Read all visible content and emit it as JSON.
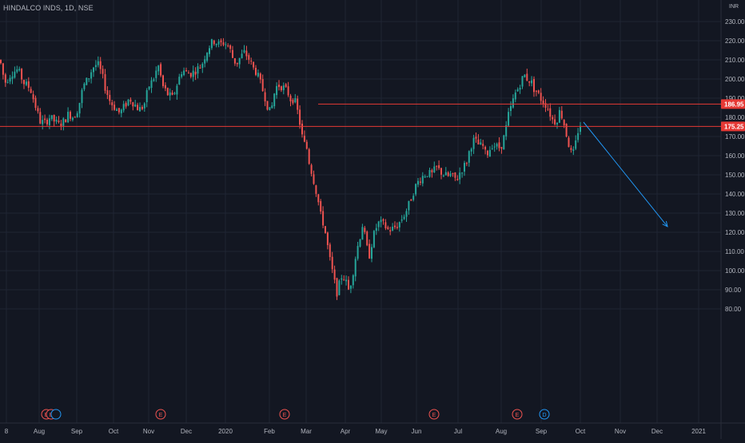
{
  "header": {
    "title": "HINDALCO INDS, 1D, NSE"
  },
  "price_scale": {
    "currency": "INR"
  },
  "colors": {
    "background": "#131722",
    "grid": "#1f2433",
    "up": "#26a69a",
    "down": "#ef5350",
    "text": "#b2b5be",
    "horizontal_line": "#e53935",
    "trend_arrow": "#2196f3",
    "event_earnings": "#ef5350",
    "event_dividend": "#2196f3"
  },
  "chart_data": {
    "type": "candlestick",
    "title": "HINDALCO INDS, 1D, NSE",
    "ylim": [
      75,
      235
    ],
    "y_ticks": [
      80,
      90,
      100,
      110,
      120,
      130,
      140,
      150,
      160,
      170,
      180,
      190,
      200,
      210,
      220,
      230
    ],
    "y_tick_labels": [
      "80.00",
      "90.00",
      "100.00",
      "110.00",
      "120.00",
      "130.00",
      "140.00",
      "150.00",
      "160.00",
      "170.00",
      "180.00",
      "190.00",
      "200.00",
      "210.00",
      "220.00",
      "230.00"
    ],
    "x_tick_labels": [
      "8",
      "Aug",
      "Sep",
      "Oct",
      "Nov",
      "Dec",
      "2020",
      "Feb",
      "Mar",
      "Apr",
      "May",
      "Jun",
      "Jul",
      "Aug",
      "Sep",
      "Oct",
      "Nov",
      "Dec",
      "2021"
    ],
    "price_trajectory": [
      [
        0,
        210
      ],
      [
        6,
        198
      ],
      [
        14,
        203
      ],
      [
        22,
        205
      ],
      [
        30,
        198
      ],
      [
        38,
        195
      ],
      [
        45,
        185
      ],
      [
        50,
        178
      ],
      [
        56,
        177
      ],
      [
        62,
        180
      ],
      [
        68,
        178
      ],
      [
        74,
        176
      ],
      [
        80,
        178
      ],
      [
        86,
        182
      ],
      [
        92,
        180
      ],
      [
        98,
        185
      ],
      [
        104,
        196
      ],
      [
        110,
        200
      ],
      [
        116,
        206
      ],
      [
        122,
        208
      ],
      [
        127,
        203
      ],
      [
        132,
        195
      ],
      [
        138,
        188
      ],
      [
        144,
        185
      ],
      [
        150,
        182
      ],
      [
        156,
        186
      ],
      [
        162,
        190
      ],
      [
        168,
        187
      ],
      [
        174,
        184
      ],
      [
        180,
        186
      ],
      [
        186,
        196
      ],
      [
        192,
        200
      ],
      [
        198,
        207
      ],
      [
        204,
        196
      ],
      [
        210,
        192
      ],
      [
        216,
        190
      ],
      [
        222,
        198
      ],
      [
        228,
        205
      ],
      [
        234,
        203
      ],
      [
        240,
        203
      ],
      [
        246,
        205
      ],
      [
        252,
        207
      ],
      [
        258,
        214
      ],
      [
        263,
        218
      ],
      [
        268,
        220
      ],
      [
        274,
        218
      ],
      [
        280,
        219
      ],
      [
        284,
        218
      ],
      [
        288,
        215
      ],
      [
        292,
        210
      ],
      [
        296,
        208
      ],
      [
        300,
        211
      ],
      [
        306,
        214
      ],
      [
        312,
        210
      ],
      [
        316,
        206
      ],
      [
        320,
        204
      ],
      [
        324,
        200
      ],
      [
        328,
        195
      ],
      [
        332,
        190
      ],
      [
        336,
        184
      ],
      [
        339,
        182
      ],
      [
        342,
        191
      ],
      [
        346,
        196
      ],
      [
        350,
        197
      ],
      [
        356,
        195
      ],
      [
        360,
        193
      ],
      [
        364,
        189
      ],
      [
        368,
        190
      ],
      [
        371,
        185
      ],
      [
        374,
        180
      ],
      [
        377,
        172
      ],
      [
        380,
        166
      ],
      [
        383,
        166
      ],
      [
        386,
        158
      ],
      [
        389,
        153
      ],
      [
        392,
        148
      ],
      [
        395,
        142
      ],
      [
        397,
        140
      ],
      [
        400,
        130
      ],
      [
        403,
        127
      ],
      [
        406,
        122
      ],
      [
        409,
        115
      ],
      [
        412,
        107
      ],
      [
        415,
        101
      ],
      [
        418,
        95
      ],
      [
        421,
        88
      ],
      [
        424,
        92
      ],
      [
        428,
        98
      ],
      [
        432,
        95
      ],
      [
        436,
        90
      ],
      [
        440,
        95
      ],
      [
        443,
        103
      ],
      [
        446,
        110
      ],
      [
        450,
        117
      ],
      [
        454,
        125
      ],
      [
        458,
        113
      ],
      [
        462,
        108
      ],
      [
        466,
        116
      ],
      [
        470,
        122
      ],
      [
        474,
        125
      ],
      [
        480,
        124
      ],
      [
        486,
        121
      ],
      [
        492,
        122
      ],
      [
        498,
        124
      ],
      [
        504,
        128
      ],
      [
        508,
        131
      ],
      [
        512,
        135
      ],
      [
        516,
        140
      ],
      [
        520,
        144
      ],
      [
        524,
        147
      ],
      [
        528,
        149
      ],
      [
        534,
        151
      ],
      [
        540,
        150
      ],
      [
        546,
        154
      ],
      [
        550,
        152
      ],
      [
        556,
        150
      ],
      [
        560,
        149
      ],
      [
        564,
        150
      ],
      [
        568,
        148
      ],
      [
        572,
        148
      ],
      [
        576,
        152
      ],
      [
        580,
        154
      ],
      [
        584,
        157
      ],
      [
        588,
        164
      ],
      [
        592,
        168
      ],
      [
        596,
        167
      ],
      [
        600,
        165
      ],
      [
        604,
        165
      ],
      [
        608,
        160
      ],
      [
        612,
        163
      ],
      [
        616,
        166
      ],
      [
        620,
        165
      ],
      [
        624,
        164
      ],
      [
        628,
        166
      ],
      [
        632,
        172
      ],
      [
        636,
        181
      ],
      [
        640,
        186
      ],
      [
        644,
        192
      ],
      [
        648,
        195
      ],
      [
        652,
        199
      ],
      [
        656,
        202
      ],
      [
        660,
        200
      ],
      [
        664,
        199
      ],
      [
        668,
        195
      ],
      [
        672,
        193
      ],
      [
        676,
        190
      ],
      [
        680,
        188
      ],
      [
        684,
        186
      ],
      [
        688,
        182
      ],
      [
        692,
        178
      ],
      [
        696,
        178
      ],
      [
        700,
        183
      ],
      [
        704,
        180
      ],
      [
        708,
        172
      ],
      [
        712,
        165
      ],
      [
        716,
        159
      ],
      [
        720,
        166
      ],
      [
        724,
        175
      ],
      [
        727,
        177
      ]
    ],
    "horizontal_lines": [
      {
        "price": 186.95,
        "label": "186.95"
      },
      {
        "price": 175.25,
        "label": "175.25"
      }
    ],
    "events": [
      {
        "label": "E",
        "kind": "earnings"
      },
      {
        "label": "E",
        "kind": "earnings"
      },
      {
        "label": "",
        "kind": "dividend"
      },
      {
        "label": "E",
        "kind": "earnings"
      },
      {
        "label": "E",
        "kind": "earnings"
      },
      {
        "label": "E",
        "kind": "earnings"
      },
      {
        "label": "E",
        "kind": "earnings"
      },
      {
        "label": "D",
        "kind": "dividend"
      }
    ],
    "grid": true
  }
}
